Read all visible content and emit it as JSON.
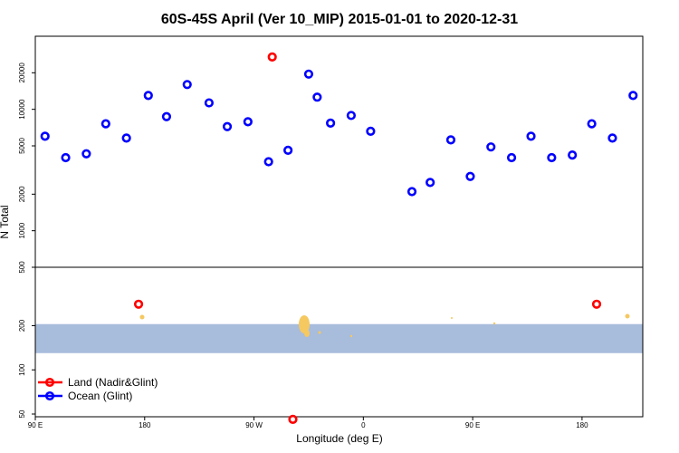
{
  "chart_data": {
    "type": "scatter",
    "title": "60S-45S April (Ver 10_MIP)   2015-01-01 to 2020-12-31",
    "xlabel": "Longitude (deg E)",
    "ylabel": "N Total",
    "xlim": [
      90,
      590
    ],
    "x_ticks": [
      {
        "value": 90,
        "label": "90 E"
      },
      {
        "value": 180,
        "label": "180"
      },
      {
        "value": 270,
        "label": "90 W"
      },
      {
        "value": 360,
        "label": "0"
      },
      {
        "value": 450,
        "label": "90 E"
      },
      {
        "value": 540,
        "label": "180"
      }
    ],
    "y_ticks": [
      {
        "value": 50,
        "label": "50"
      },
      {
        "value": 100,
        "label": "100"
      },
      {
        "value": 200,
        "label": "200"
      },
      {
        "value": 500,
        "label": "500"
      },
      {
        "value": 1000,
        "label": "1000"
      },
      {
        "value": 2000,
        "label": "2000"
      },
      {
        "value": 5000,
        "label": "5000"
      },
      {
        "value": 10000,
        "label": "10000"
      },
      {
        "value": 20000,
        "label": "20000"
      }
    ],
    "legend_position": "bottom-left",
    "series": [
      {
        "name": "Land (Nadir&Glint)",
        "color": "#ff0000",
        "points": [
          {
            "x": 175,
            "y": 280
          },
          {
            "x": 285,
            "y": 27000
          },
          {
            "x": 302,
            "y": 46
          },
          {
            "x": 552,
            "y": 280
          }
        ]
      },
      {
        "name": "Ocean (Glint)",
        "color": "#0000ff",
        "points": [
          {
            "x": 98,
            "y": 6000
          },
          {
            "x": 115,
            "y": 4000
          },
          {
            "x": 132,
            "y": 4300
          },
          {
            "x": 148,
            "y": 7600
          },
          {
            "x": 165,
            "y": 5800
          },
          {
            "x": 183,
            "y": 13000
          },
          {
            "x": 198,
            "y": 8700
          },
          {
            "x": 215,
            "y": 16000
          },
          {
            "x": 233,
            "y": 11300
          },
          {
            "x": 248,
            "y": 7200
          },
          {
            "x": 265,
            "y": 7900
          },
          {
            "x": 282,
            "y": 3700
          },
          {
            "x": 298,
            "y": 4600
          },
          {
            "x": 315,
            "y": 19500
          },
          {
            "x": 322,
            "y": 12600
          },
          {
            "x": 333,
            "y": 7700
          },
          {
            "x": 350,
            "y": 8900
          },
          {
            "x": 366,
            "y": 6600
          },
          {
            "x": 400,
            "y": 2100
          },
          {
            "x": 415,
            "y": 2500
          },
          {
            "x": 432,
            "y": 5600
          },
          {
            "x": 448,
            "y": 2800
          },
          {
            "x": 465,
            "y": 4900
          },
          {
            "x": 482,
            "y": 4000
          },
          {
            "x": 498,
            "y": 6000
          },
          {
            "x": 515,
            "y": 4000
          },
          {
            "x": 532,
            "y": 4200
          },
          {
            "x": 548,
            "y": 7600
          },
          {
            "x": 565,
            "y": 5800
          },
          {
            "x": 582,
            "y": 13000
          }
        ]
      }
    ],
    "region_band": {
      "x_range": [
        90,
        590
      ],
      "y_range": [
        130,
        205
      ],
      "color": "#a8bcdc"
    },
    "land_color": "#f5c860"
  }
}
